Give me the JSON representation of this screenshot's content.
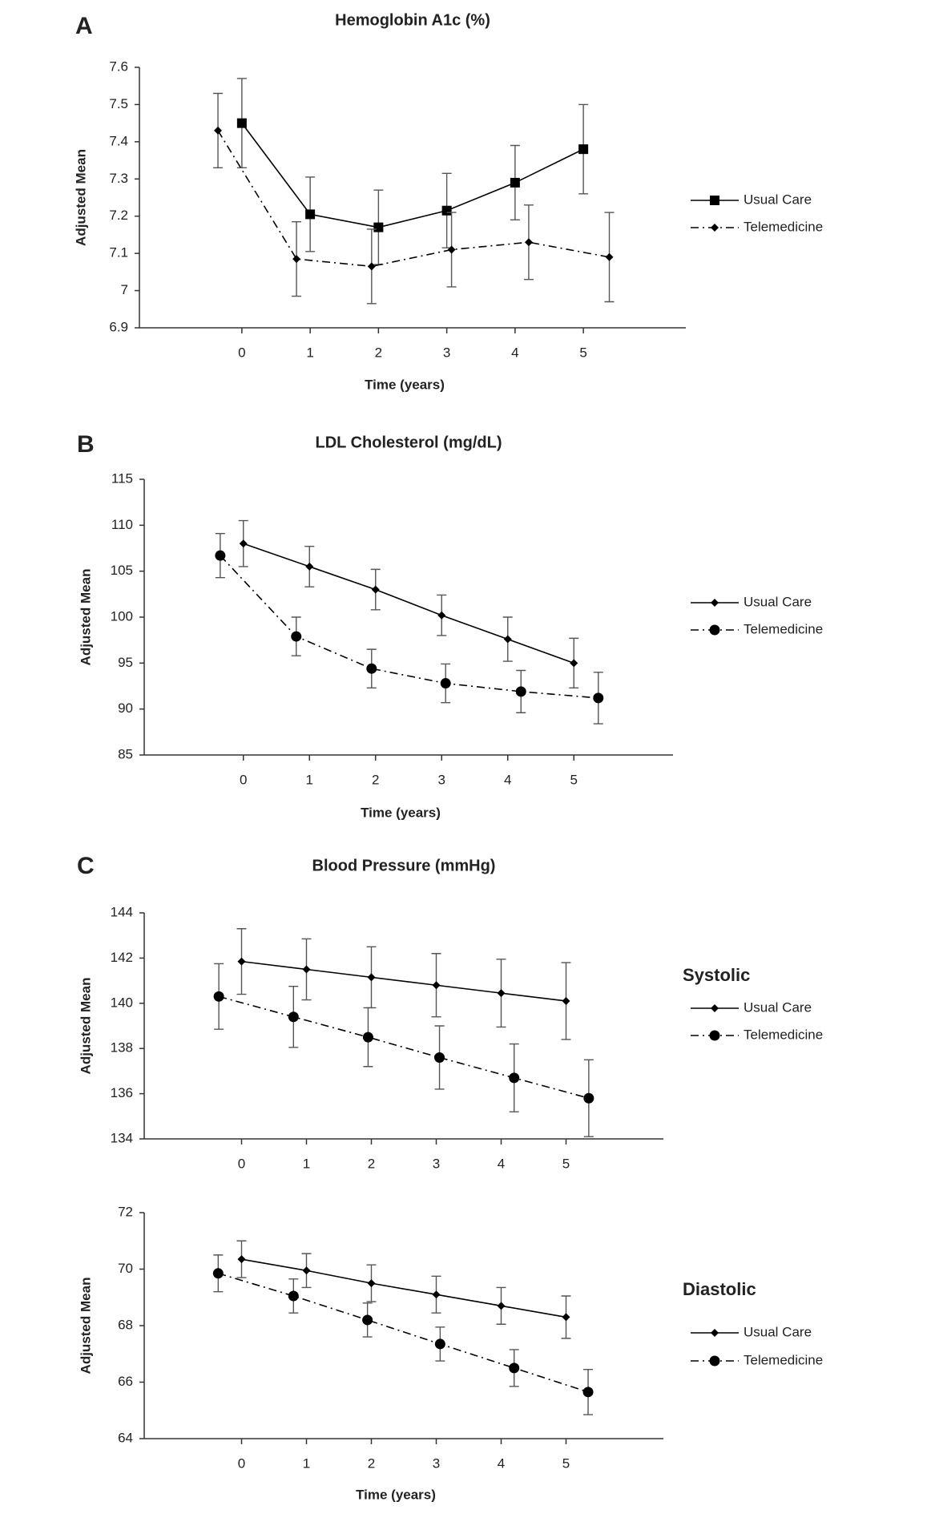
{
  "chart_data": [
    {
      "type": "line",
      "panel_label": "A",
      "title": "Hemoglobin A1c (%)",
      "xlabel": "Time (years)",
      "ylabel": "Adjusted Mean",
      "xlim": [
        -1.5,
        6.5
      ],
      "xticks": [
        0,
        1,
        2,
        3,
        4,
        5
      ],
      "ylim": [
        6.9,
        7.6
      ],
      "yticks": [
        6.9,
        7,
        7.1,
        7.2,
        7.3,
        7.4,
        7.5,
        7.6
      ],
      "legend": "right",
      "series": [
        {
          "name": "Usual Care",
          "color": "#000000",
          "marker": "square",
          "line_style": "solid",
          "x": [
            0,
            1,
            2,
            3,
            4,
            5
          ],
          "values": [
            7.45,
            7.205,
            7.17,
            7.215,
            7.29,
            7.38
          ],
          "errors": [
            0.12,
            0.1,
            0.1,
            0.1,
            0.1,
            0.12
          ]
        },
        {
          "name": "Telemedicine",
          "color": "#000000",
          "marker": "diamond",
          "line_style": "dashdot",
          "x": [
            -0.35,
            0.8,
            1.9,
            3.07,
            4.2,
            5.38
          ],
          "values": [
            7.43,
            7.085,
            7.065,
            7.11,
            7.13,
            7.09
          ],
          "errors": [
            0.1,
            0.1,
            0.1,
            0.1,
            0.1,
            0.12
          ]
        }
      ]
    },
    {
      "type": "line",
      "panel_label": "B",
      "title": "LDL Cholesterol (mg/dL)",
      "xlabel": "Time (years)",
      "ylabel": "Adjusted Mean",
      "xlim": [
        -1.5,
        6.5
      ],
      "xticks": [
        0,
        1,
        2,
        3,
        4,
        5
      ],
      "ylim": [
        85,
        115
      ],
      "yticks": [
        85,
        90,
        95,
        100,
        105,
        110,
        115
      ],
      "legend": "right",
      "series": [
        {
          "name": "Usual Care",
          "color": "#000000",
          "marker": "diamond",
          "line_style": "solid",
          "x": [
            0,
            1,
            2,
            3,
            4,
            5
          ],
          "values": [
            108,
            105.5,
            103,
            100.2,
            97.6,
            95
          ],
          "errors": [
            2.5,
            2.2,
            2.2,
            2.2,
            2.4,
            2.7
          ]
        },
        {
          "name": "Telemedicine",
          "color": "#000000",
          "marker": "circle",
          "line_style": "dashdot",
          "x": [
            -0.35,
            0.8,
            1.94,
            3.06,
            4.2,
            5.37
          ],
          "values": [
            106.7,
            97.9,
            94.4,
            92.8,
            91.9,
            91.2
          ],
          "errors": [
            2.4,
            2.1,
            2.1,
            2.1,
            2.3,
            2.8
          ]
        }
      ]
    },
    {
      "type": "line",
      "panel_label": "C",
      "title": "Blood Pressure (mmHg)",
      "subtitle": "Systolic",
      "ylabel": "Adjusted Mean",
      "xlim": [
        -1.5,
        6.5
      ],
      "xticks": [
        0,
        1,
        2,
        3,
        4,
        5
      ],
      "ylim": [
        134,
        144
      ],
      "yticks": [
        134,
        136,
        138,
        140,
        142,
        144
      ],
      "legend": "right",
      "series": [
        {
          "name": "Usual Care",
          "color": "#000000",
          "marker": "diamond",
          "line_style": "solid",
          "x": [
            0,
            1,
            2,
            3,
            4,
            5
          ],
          "values": [
            141.85,
            141.5,
            141.15,
            140.8,
            140.45,
            140.1
          ],
          "errors": [
            1.45,
            1.35,
            1.35,
            1.4,
            1.5,
            1.7
          ]
        },
        {
          "name": "Telemedicine",
          "color": "#000000",
          "marker": "circle",
          "line_style": "dashdot",
          "x": [
            -0.35,
            0.8,
            1.95,
            3.05,
            4.2,
            5.35
          ],
          "values": [
            140.3,
            139.4,
            138.5,
            137.6,
            136.7,
            135.8
          ],
          "errors": [
            1.45,
            1.35,
            1.3,
            1.4,
            1.5,
            1.7
          ]
        }
      ]
    },
    {
      "type": "line",
      "subtitle": "Diastolic",
      "xlabel": "Time (years)",
      "ylabel": "Adjusted Mean",
      "xlim": [
        -1.5,
        6.5
      ],
      "xticks": [
        0,
        1,
        2,
        3,
        4,
        5
      ],
      "ylim": [
        64,
        72
      ],
      "yticks": [
        64,
        66,
        68,
        70,
        72
      ],
      "legend": "right",
      "series": [
        {
          "name": "Usual Care",
          "color": "#000000",
          "marker": "diamond",
          "line_style": "solid",
          "x": [
            0,
            1,
            2,
            3,
            4,
            5
          ],
          "values": [
            70.35,
            69.95,
            69.5,
            69.1,
            68.7,
            68.3
          ],
          "errors": [
            0.65,
            0.6,
            0.65,
            0.65,
            0.65,
            0.75
          ]
        },
        {
          "name": "Telemedicine",
          "color": "#000000",
          "marker": "circle",
          "line_style": "dashdot",
          "x": [
            -0.36,
            0.8,
            1.94,
            3.06,
            4.2,
            5.34
          ],
          "values": [
            69.85,
            69.05,
            68.2,
            67.35,
            66.5,
            65.65
          ],
          "errors": [
            0.65,
            0.6,
            0.6,
            0.6,
            0.65,
            0.8
          ]
        }
      ]
    }
  ]
}
